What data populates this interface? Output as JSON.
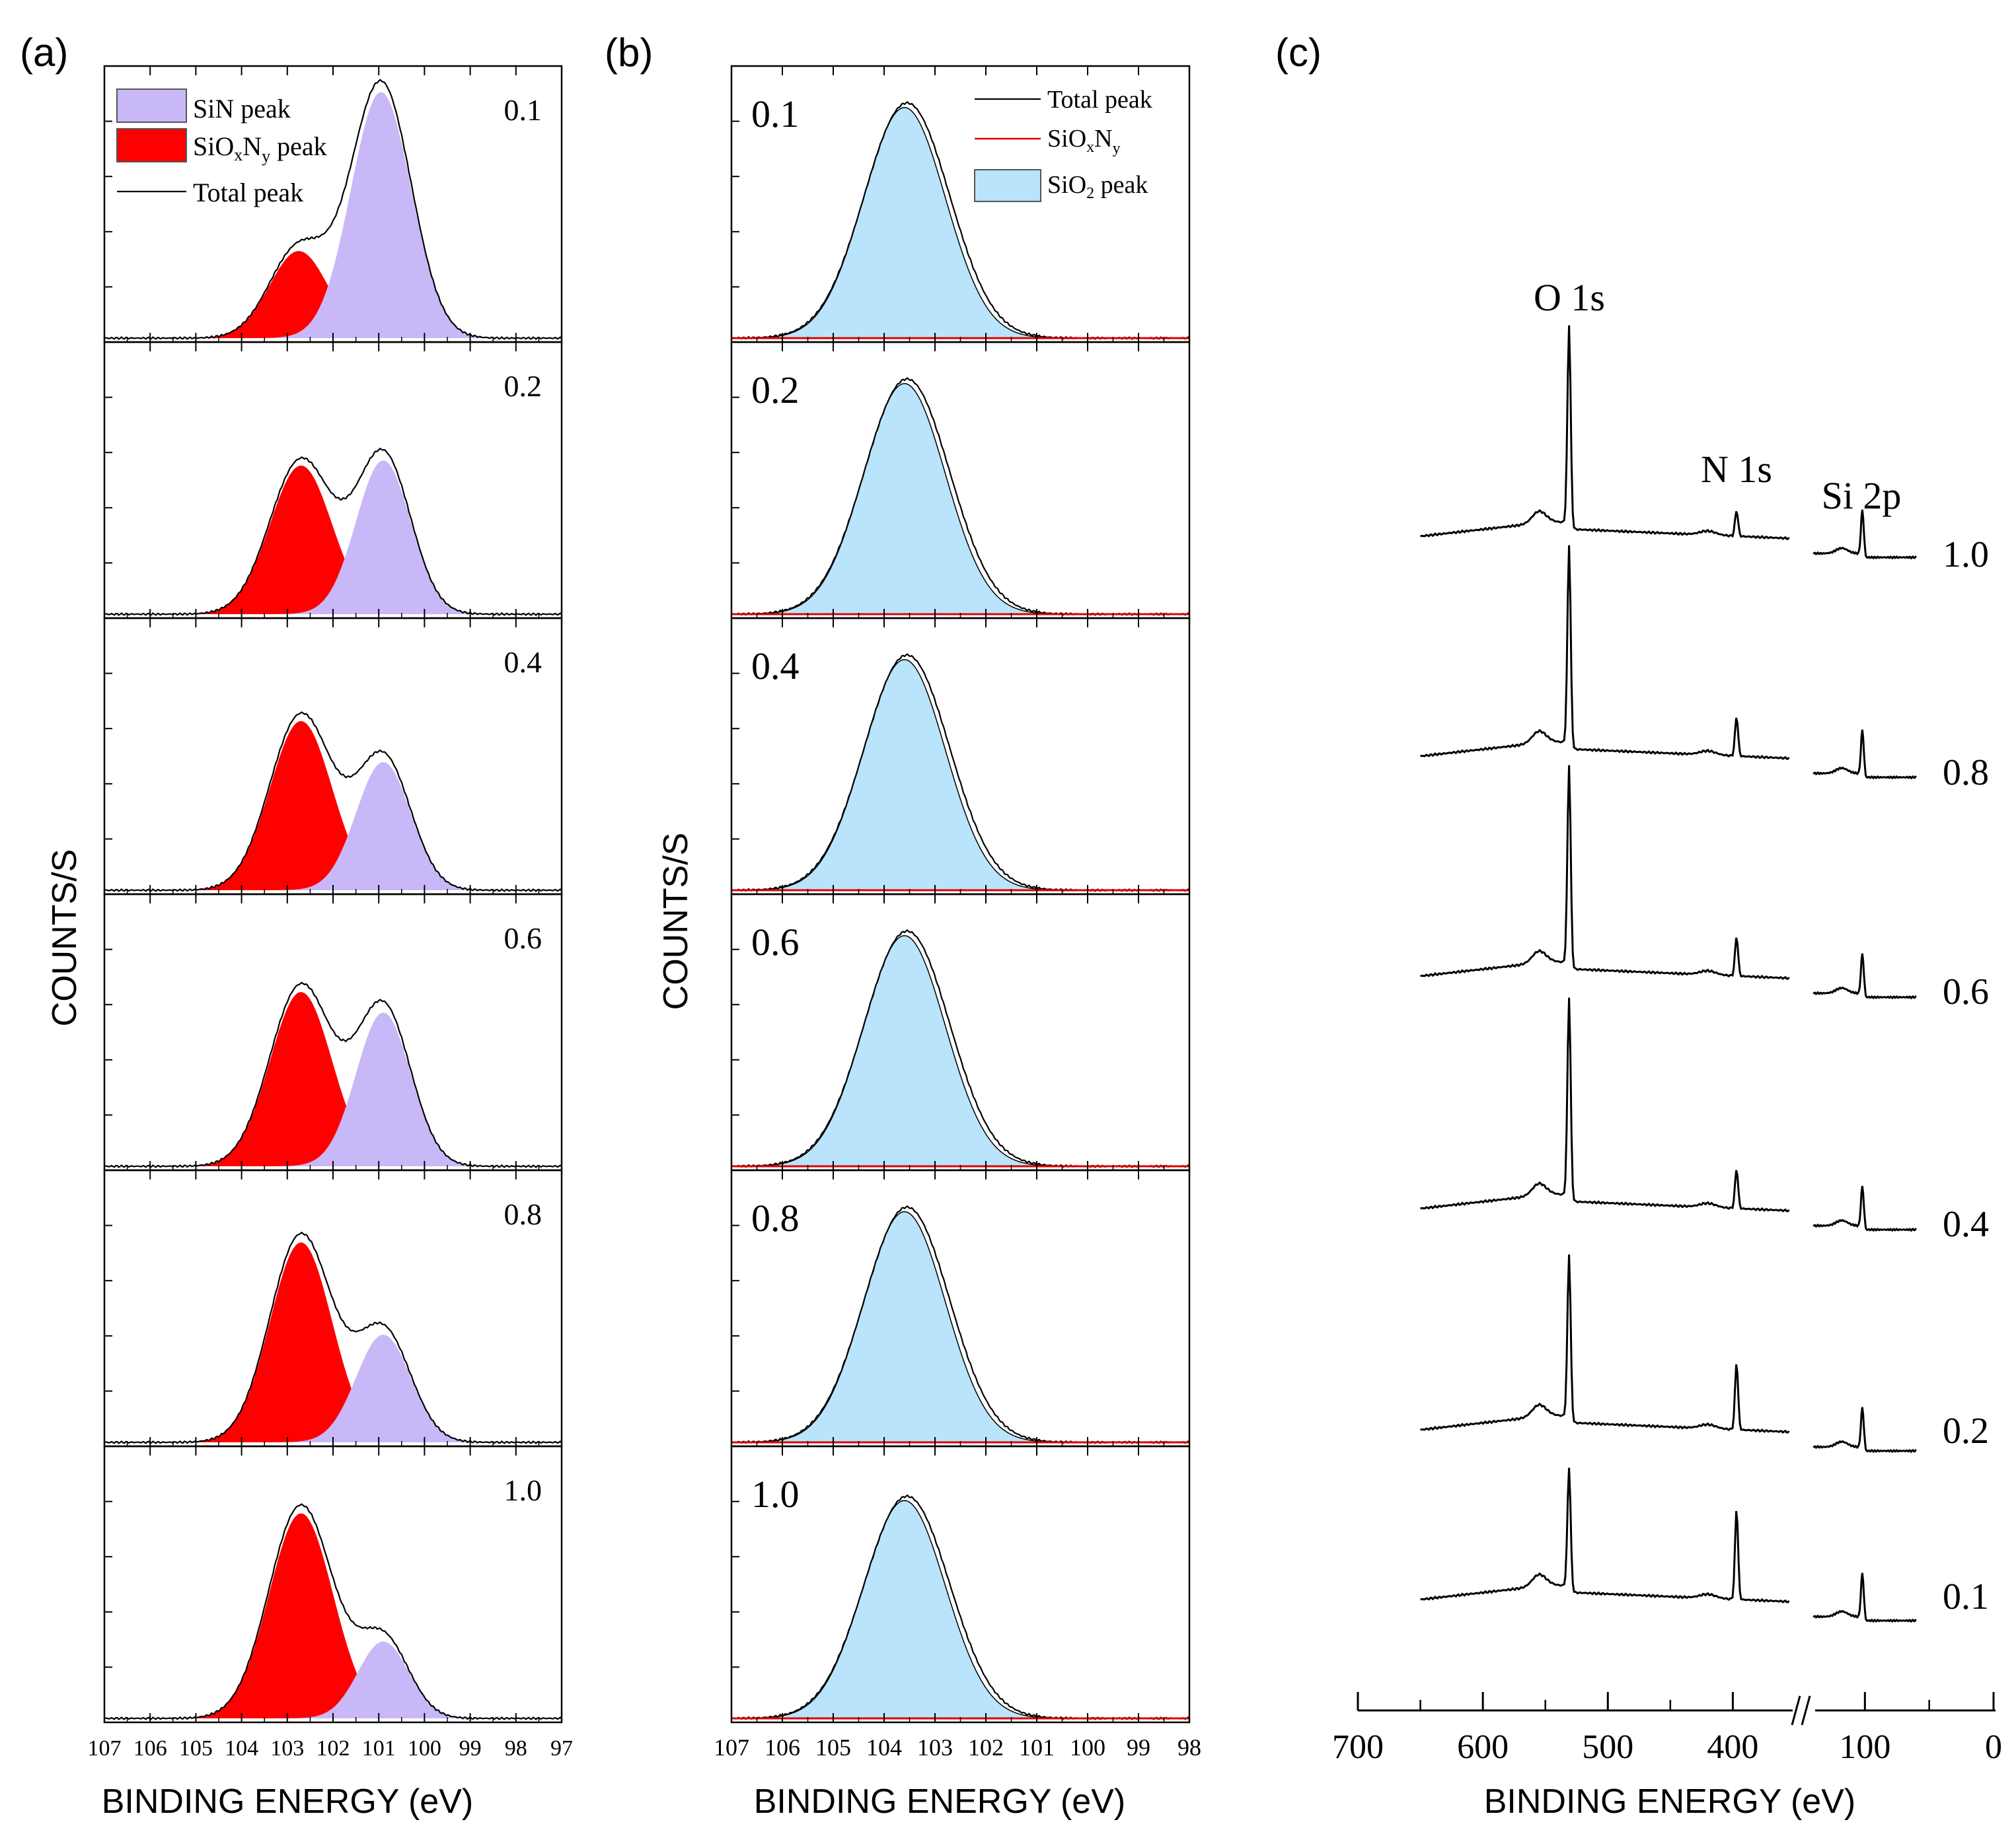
{
  "colors": {
    "sin_fill": "#c9b8f7",
    "sioxny_fill": "#ff0000",
    "sio2_fill": "#b9e4fb",
    "line": "#000000",
    "red_line": "#e00000"
  },
  "chart_data": [
    {
      "type": "area",
      "panel_label": "(a)",
      "title": "",
      "xlabel": "BINDING ENERGY (eV)",
      "ylabel": "COUNTS/S",
      "xlim": [
        107,
        97
      ],
      "x_ticks": [
        "107",
        "106",
        "105",
        "104",
        "103",
        "102",
        "101",
        "100",
        "99",
        "98",
        "97"
      ],
      "legend": {
        "position": "top-left of first subplot",
        "entries": [
          "SiN peak",
          "SiOxNy peak",
          "Total peak"
        ],
        "sin_label": "SiN peak",
        "sioxny_label_main": "SiO",
        "sioxny_sub_x": "x",
        "sioxny_label_mid": "N",
        "sioxny_sub_y": "y",
        "sioxny_label_end": " peak",
        "total_label": "Total peak"
      },
      "subplots": [
        {
          "label": "0.1",
          "peaks": [
            {
              "name": "SiOxNy",
              "center": 102.75,
              "height": 0.34,
              "fwhm": 1.5
            },
            {
              "name": "SiN",
              "center": 100.95,
              "height": 0.96,
              "fwhm": 1.55
            }
          ]
        },
        {
          "label": "0.2",
          "peaks": [
            {
              "name": "SiOxNy",
              "center": 102.7,
              "height": 0.58,
              "fwhm": 1.6
            },
            {
              "name": "SiN",
              "center": 100.9,
              "height": 0.6,
              "fwhm": 1.4
            }
          ]
        },
        {
          "label": "0.4",
          "peaks": [
            {
              "name": "SiOxNy",
              "center": 102.7,
              "height": 0.66,
              "fwhm": 1.6
            },
            {
              "name": "SiN",
              "center": 100.9,
              "height": 0.5,
              "fwhm": 1.4
            }
          ]
        },
        {
          "label": "0.6",
          "peaks": [
            {
              "name": "SiOxNy",
              "center": 102.7,
              "height": 0.68,
              "fwhm": 1.6
            },
            {
              "name": "SiN",
              "center": 100.9,
              "height": 0.6,
              "fwhm": 1.4
            }
          ]
        },
        {
          "label": "0.8",
          "peaks": [
            {
              "name": "SiOxNy",
              "center": 102.7,
              "height": 0.78,
              "fwhm": 1.6
            },
            {
              "name": "SiN",
              "center": 100.9,
              "height": 0.42,
              "fwhm": 1.4
            }
          ]
        },
        {
          "label": "1.0",
          "peaks": [
            {
              "name": "SiOxNy",
              "center": 102.7,
              "height": 0.8,
              "fwhm": 1.65
            },
            {
              "name": "SiN",
              "center": 100.9,
              "height": 0.3,
              "fwhm": 1.3
            }
          ]
        }
      ]
    },
    {
      "type": "area",
      "panel_label": "(b)",
      "title": "",
      "xlabel": "BINDING ENERGY (eV)",
      "ylabel": "COUNTS/S",
      "xlim": [
        107,
        98
      ],
      "x_ticks": [
        "107",
        "106",
        "105",
        "104",
        "103",
        "102",
        "101",
        "100",
        "99",
        "98"
      ],
      "legend": {
        "position": "top-right of first subplot",
        "entries": [
          "Total peak",
          "SiOxNy",
          "SiO2 peak"
        ],
        "total_label": "Total peak",
        "sioxny_label_main": "SiO",
        "sioxny_sub_x": "x",
        "sioxny_label_mid": "N",
        "sioxny_sub_y": "y",
        "sio2_label_main": "SiO",
        "sio2_sub": "2",
        "sio2_label_end": " peak"
      },
      "subplots": [
        {
          "label": "0.1",
          "peaks": [
            {
              "name": "SiO2",
              "center": 103.6,
              "height": 0.9,
              "fwhm": 1.9
            }
          ]
        },
        {
          "label": "0.2",
          "peaks": [
            {
              "name": "SiO2",
              "center": 103.6,
              "height": 0.9,
              "fwhm": 1.9
            }
          ]
        },
        {
          "label": "0.4",
          "peaks": [
            {
              "name": "SiO2",
              "center": 103.6,
              "height": 0.9,
              "fwhm": 1.9
            }
          ]
        },
        {
          "label": "0.6",
          "peaks": [
            {
              "name": "SiO2",
              "center": 103.6,
              "height": 0.9,
              "fwhm": 1.9
            }
          ]
        },
        {
          "label": "0.8",
          "peaks": [
            {
              "name": "SiO2",
              "center": 103.6,
              "height": 0.9,
              "fwhm": 1.9
            }
          ]
        },
        {
          "label": "1.0",
          "peaks": [
            {
              "name": "SiO2",
              "center": 103.6,
              "height": 0.85,
              "fwhm": 1.9
            }
          ]
        }
      ]
    },
    {
      "type": "line",
      "panel_label": "(c)",
      "title": "",
      "xlabel": "BINDING ENERGY (eV)",
      "ylabel": "",
      "xlim": [
        700,
        0
      ],
      "axis_break": "//",
      "x_ticks": [
        "700",
        "600",
        "500",
        "400",
        "100",
        "0"
      ],
      "annotations": [
        "O 1s",
        "N 1s",
        "Si 2p"
      ],
      "series": [
        {
          "name": "1.0",
          "o1s_height": 1.0,
          "n1s_height": 0.13,
          "si2p_height": 0.22
        },
        {
          "name": "0.8",
          "o1s_height": 1.0,
          "n1s_height": 0.2,
          "si2p_height": 0.22
        },
        {
          "name": "0.6",
          "o1s_height": 1.0,
          "n1s_height": 0.2,
          "si2p_height": 0.2
        },
        {
          "name": "0.4",
          "o1s_height": 1.0,
          "n1s_height": 0.2,
          "si2p_height": 0.2
        },
        {
          "name": "0.2",
          "o1s_height": 0.82,
          "n1s_height": 0.34,
          "si2p_height": 0.2
        },
        {
          "name": "0.1",
          "o1s_height": 0.6,
          "n1s_height": 0.46,
          "si2p_height": 0.22
        }
      ]
    }
  ]
}
